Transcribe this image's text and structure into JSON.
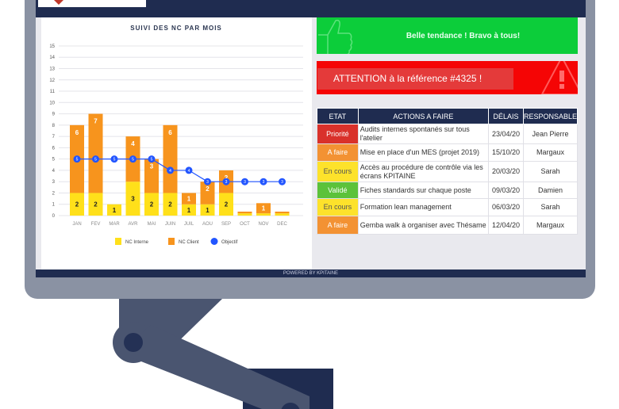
{
  "footer": "POWERED BY KPITAINE",
  "banners": {
    "success": "Belle tendance ! Bravo à tous!",
    "success_icon": "thumbs-up-icon",
    "alert": "ATTENTION à la référence #4325 !",
    "alert_icon": "warning-icon"
  },
  "colors": {
    "navy": "#1f2c50",
    "green": "#0ccd3a",
    "red": "#f50505",
    "interne": "#ffe01a",
    "client": "#f7941d",
    "objectif": "#2255ff"
  },
  "table": {
    "headers": [
      "ETAT",
      "ACTIONS A FAIRE",
      "DÉLAIS",
      "RESPONSABLE"
    ],
    "rows": [
      {
        "etat": "Priorité",
        "color": "#d9312b",
        "action": "Audits internes spontanés sur tous l'atelier",
        "delai": "23/04/20",
        "resp": "Jean Pierre"
      },
      {
        "etat": "A faire",
        "color": "#f39233",
        "action": "Mise en place d'un MES (projet 2019)",
        "delai": "15/10/20",
        "resp": "Margaux"
      },
      {
        "etat": "En cours",
        "color": "#fde22b",
        "action": "Accès au procédure de contrôle via les écrans KPITAINE",
        "delai": "20/03/20",
        "resp": "Sarah"
      },
      {
        "etat": "Validé",
        "color": "#5cc23a",
        "action": "Fiches standards sur chaque poste",
        "delai": "09/03/20",
        "resp": "Damien"
      },
      {
        "etat": "En cours",
        "color": "#fde22b",
        "action": "Formation lean management",
        "delai": "06/03/20",
        "resp": "Sarah"
      },
      {
        "etat": "A faire",
        "color": "#f39233",
        "action": "Gemba walk à organiser avec Thésame",
        "delai": "12/04/20",
        "resp": "Margaux"
      }
    ]
  },
  "chart_data": {
    "type": "bar",
    "stacked": true,
    "title": "SUIVI DES NC PAR MOIS",
    "categories": [
      "JAN",
      "FEV",
      "MAR",
      "AVR",
      "MAI",
      "JUIN",
      "JUIL",
      "AOU",
      "SEP",
      "OCT",
      "NOV",
      "DEC"
    ],
    "ylim": [
      0,
      15
    ],
    "yticks": [
      0,
      1,
      2,
      3,
      4,
      5,
      6,
      7,
      8,
      9,
      10,
      11,
      12,
      13,
      14,
      15
    ],
    "grid": true,
    "legend": "bottom",
    "series": [
      {
        "name": "NC Interne",
        "type": "bar",
        "color": "#ffe01a",
        "values": [
          2,
          2,
          1,
          3,
          2,
          2,
          1,
          1,
          2,
          0.2,
          0.2,
          0.2
        ]
      },
      {
        "name": "NC Client",
        "type": "bar",
        "color": "#f7941d",
        "values": [
          6,
          7,
          0,
          4,
          3,
          6,
          1,
          2,
          2,
          0.15,
          0.9,
          0.15
        ],
        "labels": [
          "6",
          "7",
          "",
          "4",
          "3",
          "6",
          "1",
          "2",
          "2",
          "",
          "1",
          ""
        ]
      },
      {
        "name": "Objectif",
        "type": "line",
        "color": "#2255ff",
        "values": [
          5,
          5,
          5,
          5,
          5,
          4,
          4,
          3,
          3,
          3,
          3,
          3
        ]
      }
    ]
  }
}
